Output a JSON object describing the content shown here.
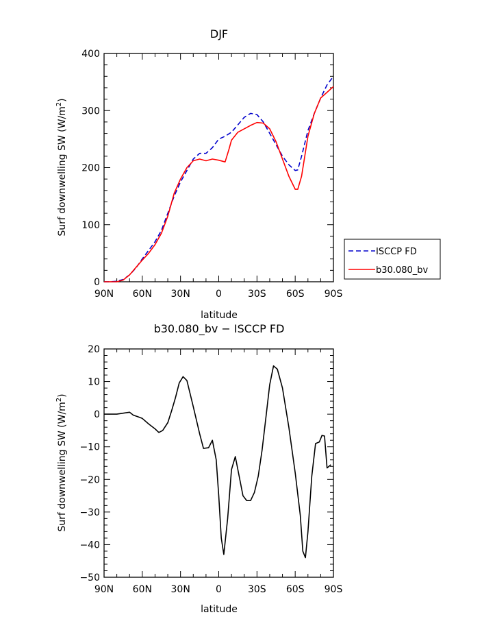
{
  "chart_data": [
    {
      "type": "line",
      "title": "DJF",
      "xlabel": "latitude",
      "ylabel_main": "Surf downwelling SW (W/m",
      "ylabel_sup": "2",
      "ylabel_close": ")",
      "xlim": [
        -90,
        90
      ],
      "ylim": [
        0,
        400
      ],
      "x_ticks": [
        -90,
        -60,
        -30,
        0,
        30,
        60,
        90
      ],
      "x_tick_labels": [
        "90N",
        "60N",
        "30N",
        "0",
        "30S",
        "60S",
        "90S"
      ],
      "y_ticks": [
        0,
        100,
        200,
        300,
        400
      ],
      "y_tick_labels": [
        "0",
        "100",
        "200",
        "300",
        "400"
      ],
      "grid": false,
      "legend_position": "right",
      "series": [
        {
          "name": "ISCCP FD",
          "color": "#0000cc",
          "dashed": true,
          "x": [
            -90,
            -85,
            -80,
            -75,
            -70,
            -65,
            -60,
            -55,
            -50,
            -45,
            -40,
            -35,
            -30,
            -25,
            -20,
            -15,
            -10,
            -5,
            0,
            5,
            10,
            15,
            20,
            25,
            30,
            35,
            40,
            45,
            50,
            55,
            60,
            62,
            65,
            70,
            75,
            80,
            85,
            90
          ],
          "y": [
            0,
            0,
            1,
            4,
            12,
            24,
            40,
            55,
            70,
            90,
            120,
            150,
            175,
            195,
            215,
            225,
            225,
            235,
            250,
            255,
            262,
            275,
            288,
            295,
            293,
            280,
            260,
            240,
            220,
            205,
            195,
            196,
            220,
            265,
            295,
            322,
            345,
            360
          ]
        },
        {
          "name": "b30.080_bv",
          "color": "#ff0000",
          "dashed": false,
          "x": [
            -90,
            -85,
            -80,
            -75,
            -70,
            -65,
            -60,
            -55,
            -50,
            -45,
            -40,
            -35,
            -30,
            -25,
            -20,
            -15,
            -10,
            -5,
            0,
            5,
            8,
            10,
            15,
            20,
            25,
            30,
            35,
            40,
            45,
            50,
            55,
            60,
            62,
            65,
            70,
            75,
            80,
            85,
            90
          ],
          "y": [
            0,
            0,
            0,
            3,
            12,
            25,
            38,
            50,
            65,
            85,
            115,
            155,
            180,
            200,
            212,
            215,
            212,
            215,
            213,
            210,
            232,
            248,
            262,
            268,
            274,
            279,
            278,
            268,
            245,
            215,
            185,
            162,
            162,
            185,
            255,
            295,
            322,
            332,
            342
          ]
        }
      ]
    },
    {
      "type": "line",
      "title": "b30.080_bv − ISCCP FD",
      "xlabel": "latitude",
      "ylabel_main": "Surf downwelling SW (W/m",
      "ylabel_sup": "2",
      "ylabel_close": ")",
      "xlim": [
        -90,
        90
      ],
      "ylim": [
        -50,
        20
      ],
      "x_ticks": [
        -90,
        -60,
        -30,
        0,
        30,
        60,
        90
      ],
      "x_tick_labels": [
        "90N",
        "60N",
        "30N",
        "0",
        "30S",
        "60S",
        "90S"
      ],
      "y_ticks": [
        -50,
        -40,
        -30,
        -20,
        -10,
        0,
        10,
        20
      ],
      "y_tick_labels": [
        "−50",
        "−40",
        "−30",
        "−20",
        "−10",
        "0",
        "10",
        "20"
      ],
      "grid": false,
      "series": [
        {
          "color": "#000000",
          "dashed": false,
          "x": [
            -90,
            -85,
            -80,
            -75,
            -70,
            -67,
            -64,
            -60,
            -55,
            -50,
            -47,
            -44,
            -40,
            -37,
            -34,
            -31,
            -28,
            -25,
            -20,
            -15,
            -12,
            -8,
            -5,
            -2,
            0,
            2,
            4,
            7,
            10,
            13,
            16,
            19,
            22,
            25,
            28,
            31,
            34,
            37,
            40,
            43,
            46,
            50,
            55,
            60,
            64,
            66,
            68,
            70,
            73,
            76,
            79,
            81,
            83,
            85,
            88
          ],
          "y": [
            0,
            0,
            0,
            0.3,
            0.6,
            -0.3,
            -0.7,
            -1.3,
            -3,
            -4.5,
            -5.6,
            -5,
            -2.6,
            1,
            5,
            9.6,
            11.5,
            10.3,
            2.3,
            -6,
            -10.5,
            -10.3,
            -8,
            -14,
            -25,
            -38,
            -43,
            -32,
            -17,
            -13,
            -19,
            -25,
            -26.5,
            -26.5,
            -24,
            -19,
            -11,
            -1,
            9,
            14.8,
            13.8,
            8,
            -4,
            -18,
            -31,
            -42,
            -44,
            -36,
            -19,
            -9,
            -8.5,
            -6.5,
            -6.7,
            -16.5,
            -15.5
          ]
        }
      ]
    }
  ]
}
